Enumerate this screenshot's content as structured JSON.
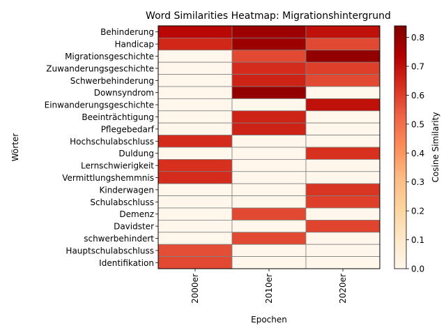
{
  "chart_data": {
    "type": "heatmap",
    "title": "Word Similarities Heatmap: Migrationshintergrund",
    "xlabel": "Epochen",
    "ylabel": "Wörter",
    "colorbar_label": "Cosine Similarity",
    "colormap": "OrRd",
    "vmin": 0.0,
    "vmax": 0.84,
    "colorbar_ticks": [
      "0.0",
      "0.1",
      "0.2",
      "0.3",
      "0.4",
      "0.5",
      "0.6",
      "0.7",
      "0.8"
    ],
    "x_categories": [
      "2000er",
      "2010er",
      "2020er"
    ],
    "y_categories": [
      "Behinderung",
      "Handicap",
      "Migrationsgeschichte",
      "Zuwanderungsgeschichte",
      "Schwerbehinderung",
      "Downsyndrom",
      "Einwanderungsgeschichte",
      "Beeinträchtigung",
      "Pflegebedarf",
      "Hochschulabschluss",
      "Duldung",
      "Lernschwierigkeit",
      "Vermittlungshemmnis",
      "Kinderwagen",
      "Schulabschluss",
      "Demenz",
      "Davidster",
      "schwerbehindert",
      "Hauptschulabschluss",
      "Identifikation"
    ],
    "values": [
      [
        0.72,
        0.78,
        0.7
      ],
      [
        0.65,
        0.78,
        0.58
      ],
      [
        0.0,
        0.58,
        0.8
      ],
      [
        0.0,
        0.64,
        0.6
      ],
      [
        0.0,
        0.66,
        0.58
      ],
      [
        0.0,
        0.8,
        0.0
      ],
      [
        0.0,
        0.0,
        0.7
      ],
      [
        0.0,
        0.66,
        0.0
      ],
      [
        0.0,
        0.66,
        0.0
      ],
      [
        0.64,
        0.0,
        0.0
      ],
      [
        0.0,
        0.0,
        0.63
      ],
      [
        0.63,
        0.0,
        0.0
      ],
      [
        0.64,
        0.0,
        0.0
      ],
      [
        0.0,
        0.0,
        0.62
      ],
      [
        0.0,
        0.0,
        0.6
      ],
      [
        0.0,
        0.58,
        0.0
      ],
      [
        0.0,
        0.0,
        0.59
      ],
      [
        0.0,
        0.58,
        0.0
      ],
      [
        0.57,
        0.0,
        0.0
      ],
      [
        0.58,
        0.0,
        0.0
      ]
    ]
  }
}
